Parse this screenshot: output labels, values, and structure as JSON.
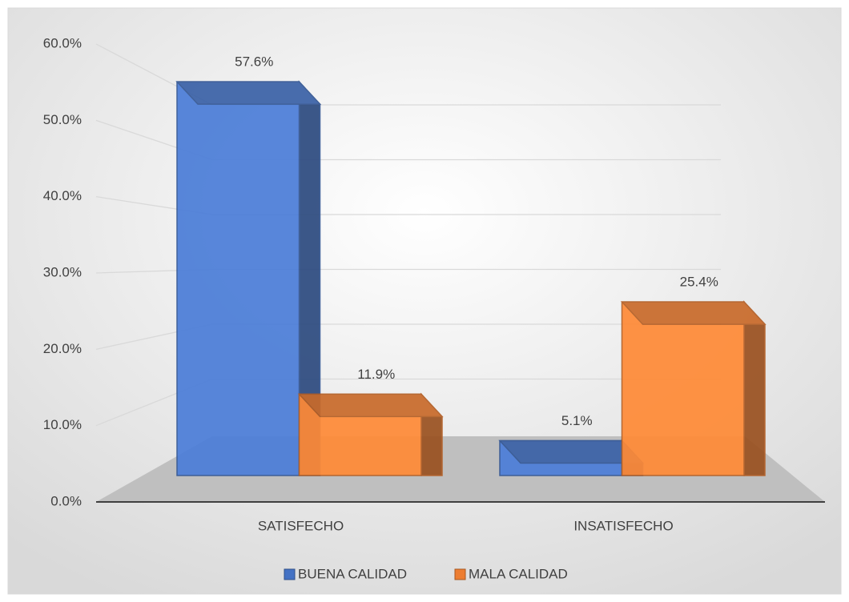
{
  "chart_data": {
    "type": "bar3d",
    "categories": [
      "SATISFECHO",
      "INSATISFECHO"
    ],
    "series": [
      {
        "name": "BUENA CALIDAD",
        "color": "#4472c4",
        "values": [
          57.6,
          5.1
        ],
        "value_labels": [
          "57.6%",
          "5.1%"
        ]
      },
      {
        "name": "MALA CALIDAD",
        "color": "#ed7d31",
        "values": [
          11.9,
          25.4
        ],
        "value_labels": [
          "11.9%",
          "25.4%"
        ]
      }
    ],
    "ylim": [
      0,
      60
    ],
    "yticks": [
      {
        "value": 0,
        "label": "0.0%"
      },
      {
        "value": 10,
        "label": "10.0%"
      },
      {
        "value": 20,
        "label": "20.0%"
      },
      {
        "value": 30,
        "label": "30.0%"
      },
      {
        "value": 40,
        "label": "40.0%"
      },
      {
        "value": 50,
        "label": "50.0%"
      },
      {
        "value": 60,
        "label": "60.0%"
      }
    ],
    "grid": true,
    "legend": "bottom"
  }
}
